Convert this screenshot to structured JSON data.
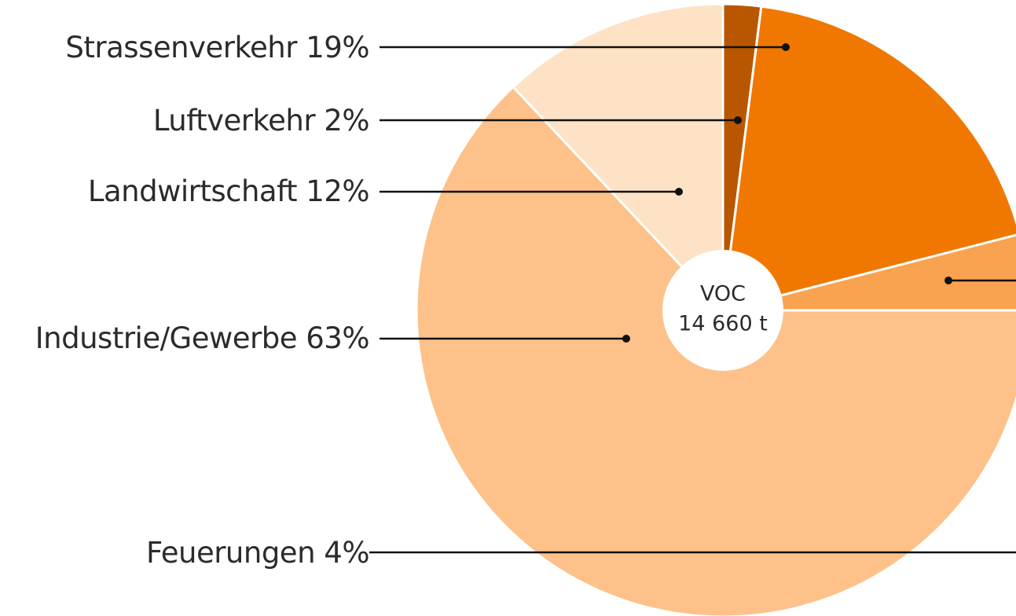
{
  "chart_data": {
    "type": "pie",
    "categories": [
      "Luftverkehr",
      "Strassenverkehr",
      "Feuerungen",
      "Industrie/Gewerbe",
      "Landwirtschaft"
    ],
    "values": [
      2,
      19,
      4,
      63,
      12
    ],
    "value_labels": [
      "2%",
      "19%",
      "4%",
      "63%",
      "12%"
    ],
    "colors": [
      "#b85700",
      "#f07800",
      "#f9a24f",
      "#fdc189",
      "#fde2c5"
    ],
    "center": {
      "title": "VOC",
      "value": 14660,
      "label": "14 660 t"
    }
  }
}
